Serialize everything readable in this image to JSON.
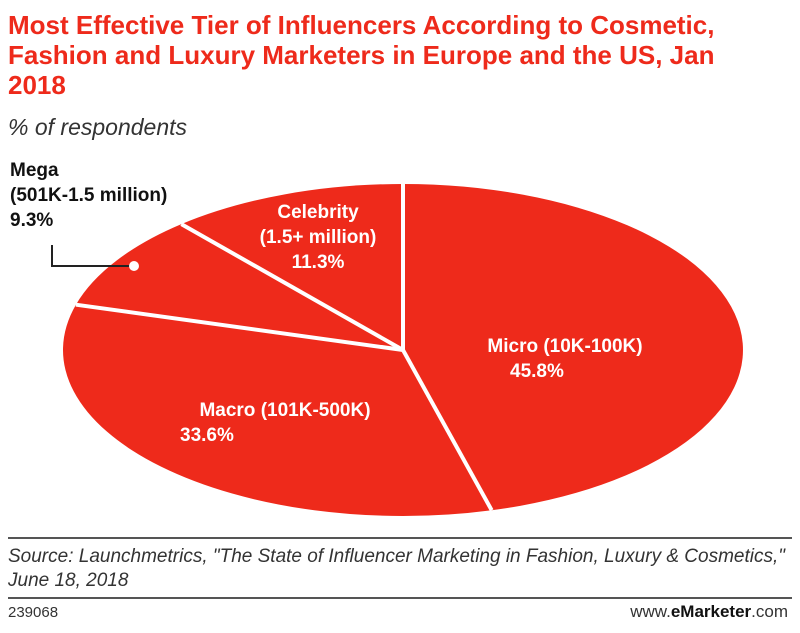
{
  "header": {
    "title": "Most Effective Tier of Influencers According to Cosmetic, Fashion and Luxury Marketers in Europe and the US, Jan 2018",
    "subtitle": "% of respondents"
  },
  "chart_data": {
    "type": "pie",
    "title": "Most Effective Tier of Influencers According to Cosmetic, Fashion and Luxury Marketers in Europe and the US, Jan 2018",
    "subtitle": "% of respondents",
    "unit": "%",
    "slices": [
      {
        "label": "Micro (10K-100K)",
        "value": 45.8,
        "value_label": "45.8%"
      },
      {
        "label": "Macro (101K-500K)",
        "value": 33.6,
        "value_label": "33.6%"
      },
      {
        "label_line1": "Mega",
        "label_line2": "(501K-1.5 million)",
        "value": 9.3,
        "value_label": "9.3%"
      },
      {
        "label_line1": "Celebrity",
        "label_line2": "(1.5+ million)",
        "value": 11.3,
        "value_label": "11.3%"
      }
    ],
    "colors": {
      "slice": "#ee2a1b",
      "separator": "#ffffff",
      "label_inside": "#ffffff",
      "label_outside": "#111111"
    }
  },
  "footer": {
    "source": "Source: Launchmetrics, \"The State of Influencer Marketing in Fashion, Luxury & Cosmetics,\" June 18, 2018",
    "chart_id": "239068",
    "brand_prefix": "www.",
    "brand_name": "eMarketer",
    "brand_suffix": ".com"
  }
}
